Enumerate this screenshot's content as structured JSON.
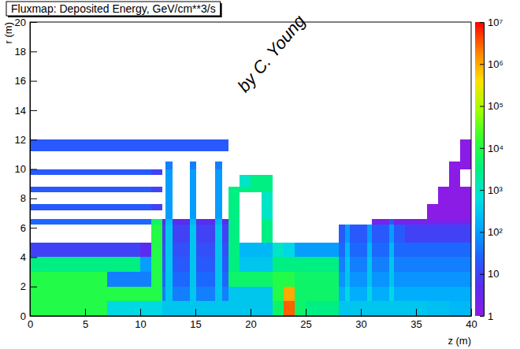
{
  "chart_data": {
    "type": "heatmap",
    "title": "Fluxmap: Deposited Energy, GeV/cm**3/s",
    "xlabel": "z (m)",
    "ylabel": "r (m)",
    "annotation": "by C. Young",
    "xlim": [
      0,
      40
    ],
    "ylim": [
      0,
      20
    ],
    "xticks": [
      0,
      5,
      10,
      15,
      20,
      25,
      30,
      35,
      40
    ],
    "yticks": [
      0,
      2,
      4,
      6,
      8,
      10,
      12,
      14,
      16,
      18,
      20
    ],
    "grid": false,
    "x_bins": [
      0,
      1,
      2,
      3,
      4,
      5,
      6,
      7,
      8,
      9,
      10,
      11,
      12,
      12.3,
      12.9,
      14.5,
      15.1,
      16.8,
      17.4,
      18,
      19,
      20,
      21,
      22,
      23,
      24,
      25,
      26,
      27,
      28,
      28.6,
      29,
      30.6,
      31,
      32.6,
      33,
      34,
      35,
      36,
      37,
      38,
      39,
      40
    ],
    "y_bins": [
      0,
      1,
      2,
      3,
      4,
      5,
      6.2,
      6.6,
      7.2,
      7.6,
      8.4,
      8.8,
      9.6,
      10,
      10.5,
      11.2,
      12
    ],
    "values": [
      [
        10000,
        10000,
        10000,
        10000,
        10000,
        10000,
        10000,
        500,
        500,
        500,
        500,
        500,
        300,
        300,
        300,
        300,
        300,
        300,
        300,
        300,
        300,
        300,
        300,
        5000,
        3000000,
        5000,
        3000,
        3000,
        3000,
        300,
        300,
        300,
        300,
        300,
        300,
        300,
        300,
        300,
        250,
        250,
        200,
        200
      ],
      [
        10000,
        10000,
        10000,
        10000,
        10000,
        10000,
        10000,
        10000,
        10000,
        10000,
        10000,
        10000,
        50,
        300,
        50,
        300,
        50,
        300,
        50,
        300,
        300,
        300,
        300,
        10000,
        1000000,
        5000,
        5000,
        5000,
        5000,
        150,
        500,
        150,
        500,
        150,
        500,
        150,
        150,
        150,
        150,
        150,
        150,
        150
      ],
      [
        10000,
        10000,
        10000,
        10000,
        10000,
        10000,
        10000,
        50,
        50,
        50,
        50,
        10000,
        30,
        300,
        30,
        300,
        30,
        300,
        30,
        5000,
        5000,
        5000,
        5000,
        10000,
        10000,
        5000,
        5000,
        5000,
        5000,
        80,
        300,
        80,
        300,
        80,
        300,
        80,
        80,
        80,
        80,
        80,
        80,
        80
      ],
      [
        3000,
        3000,
        3000,
        3000,
        3000,
        3000,
        3000,
        3000,
        3000,
        3000,
        100,
        10000,
        20,
        300,
        20,
        300,
        20,
        300,
        20,
        3000,
        300,
        300,
        300,
        3000,
        3000,
        3000,
        3000,
        3000,
        3000,
        50,
        300,
        50,
        300,
        50,
        300,
        50,
        50,
        50,
        50,
        50,
        50,
        50
      ],
      [
        10,
        10,
        10,
        10,
        10,
        10,
        10,
        10,
        10,
        10,
        5,
        10000,
        15,
        300,
        15,
        300,
        15,
        300,
        15,
        3000,
        200,
        200,
        200,
        1000,
        500,
        100,
        100,
        100,
        100,
        30,
        200,
        30,
        200,
        30,
        200,
        30,
        30,
        30,
        30,
        30,
        30,
        30
      ],
      [
        null,
        null,
        null,
        null,
        null,
        null,
        null,
        null,
        null,
        null,
        null,
        10000,
        10,
        300,
        10,
        300,
        10,
        300,
        10,
        3000,
        null,
        null,
        3000,
        null,
        null,
        null,
        null,
        null,
        null,
        20,
        100,
        20,
        100,
        20,
        100,
        20,
        10,
        10,
        10,
        10,
        10,
        10
      ],
      [
        30,
        30,
        30,
        30,
        30,
        30,
        30,
        30,
        30,
        30,
        30,
        5000,
        5,
        200,
        5,
        200,
        5,
        200,
        5,
        3000,
        null,
        null,
        3000,
        null,
        null,
        null,
        null,
        null,
        null,
        null,
        null,
        null,
        null,
        2,
        20,
        2,
        2,
        2,
        2,
        2,
        2,
        2
      ],
      [
        null,
        null,
        null,
        null,
        null,
        null,
        null,
        null,
        null,
        null,
        null,
        null,
        null,
        100,
        null,
        100,
        null,
        100,
        null,
        3000,
        null,
        null,
        1000,
        null,
        null,
        null,
        null,
        null,
        null,
        null,
        null,
        null,
        null,
        null,
        null,
        null,
        null,
        null,
        1,
        1,
        1,
        1
      ],
      [
        20,
        20,
        20,
        20,
        20,
        20,
        20,
        20,
        20,
        20,
        20,
        10,
        null,
        100,
        null,
        100,
        null,
        100,
        null,
        3000,
        null,
        null,
        1000,
        null,
        null,
        null,
        null,
        null,
        null,
        null,
        null,
        null,
        null,
        null,
        null,
        null,
        null,
        null,
        1,
        1,
        1,
        1
      ],
      [
        null,
        null,
        null,
        null,
        null,
        null,
        null,
        null,
        null,
        null,
        null,
        null,
        null,
        100,
        null,
        100,
        null,
        100,
        null,
        3000,
        null,
        null,
        1000,
        null,
        null,
        null,
        null,
        null,
        null,
        null,
        null,
        null,
        null,
        null,
        null,
        null,
        null,
        null,
        null,
        1,
        1,
        1
      ],
      [
        20,
        20,
        20,
        20,
        20,
        20,
        20,
        20,
        20,
        20,
        20,
        10,
        null,
        100,
        null,
        100,
        null,
        100,
        null,
        3000,
        3000,
        3000,
        3000,
        null,
        null,
        null,
        null,
        null,
        null,
        null,
        null,
        null,
        null,
        null,
        null,
        null,
        null,
        null,
        null,
        1,
        1,
        1
      ],
      [
        null,
        null,
        null,
        null,
        null,
        null,
        null,
        null,
        null,
        null,
        null,
        null,
        null,
        100,
        null,
        100,
        null,
        100,
        null,
        null,
        1000,
        3000,
        3000,
        null,
        null,
        null,
        null,
        null,
        null,
        null,
        null,
        null,
        null,
        null,
        null,
        null,
        null,
        null,
        null,
        null,
        1,
        null
      ],
      [
        20,
        20,
        20,
        20,
        20,
        20,
        20,
        20,
        20,
        20,
        20,
        10,
        null,
        100,
        null,
        100,
        null,
        100,
        null,
        null,
        null,
        null,
        null,
        null,
        null,
        null,
        null,
        null,
        null,
        null,
        null,
        null,
        null,
        null,
        null,
        null,
        null,
        null,
        null,
        null,
        1,
        null
      ],
      [
        null,
        null,
        null,
        null,
        null,
        null,
        null,
        null,
        null,
        null,
        null,
        null,
        null,
        50,
        null,
        50,
        null,
        50,
        null,
        null,
        null,
        null,
        null,
        null,
        null,
        null,
        null,
        null,
        null,
        null,
        null,
        null,
        null,
        null,
        null,
        null,
        null,
        null,
        null,
        null,
        1,
        1
      ],
      [
        null,
        null,
        null,
        null,
        null,
        null,
        null,
        null,
        null,
        null,
        null,
        null,
        null,
        null,
        null,
        null,
        null,
        null,
        null,
        null,
        null,
        null,
        null,
        null,
        null,
        null,
        null,
        null,
        null,
        null,
        null,
        null,
        null,
        null,
        null,
        null,
        null,
        null,
        null,
        null,
        null,
        1
      ],
      [
        20,
        20,
        20,
        20,
        20,
        20,
        20,
        20,
        20,
        20,
        20,
        20,
        20,
        20,
        20,
        20,
        20,
        20,
        20,
        null,
        null,
        null,
        null,
        null,
        null,
        null,
        null,
        null,
        null,
        null,
        null,
        null,
        null,
        null,
        null,
        null,
        null,
        null,
        null,
        null,
        null,
        1
      ]
    ],
    "colorbar": {
      "range": [
        1,
        10000000
      ],
      "log": true,
      "ticks": [
        1,
        10,
        {
          "value": 100,
          "label": "10²"
        },
        {
          "value": 1000,
          "label": "10³"
        },
        {
          "value": 10000,
          "label": "10⁴"
        },
        {
          "value": 100000,
          "label": "10⁵"
        },
        {
          "value": 1000000,
          "label": "10⁶"
        },
        {
          "value": 10000000,
          "label": "10⁷"
        }
      ]
    }
  }
}
